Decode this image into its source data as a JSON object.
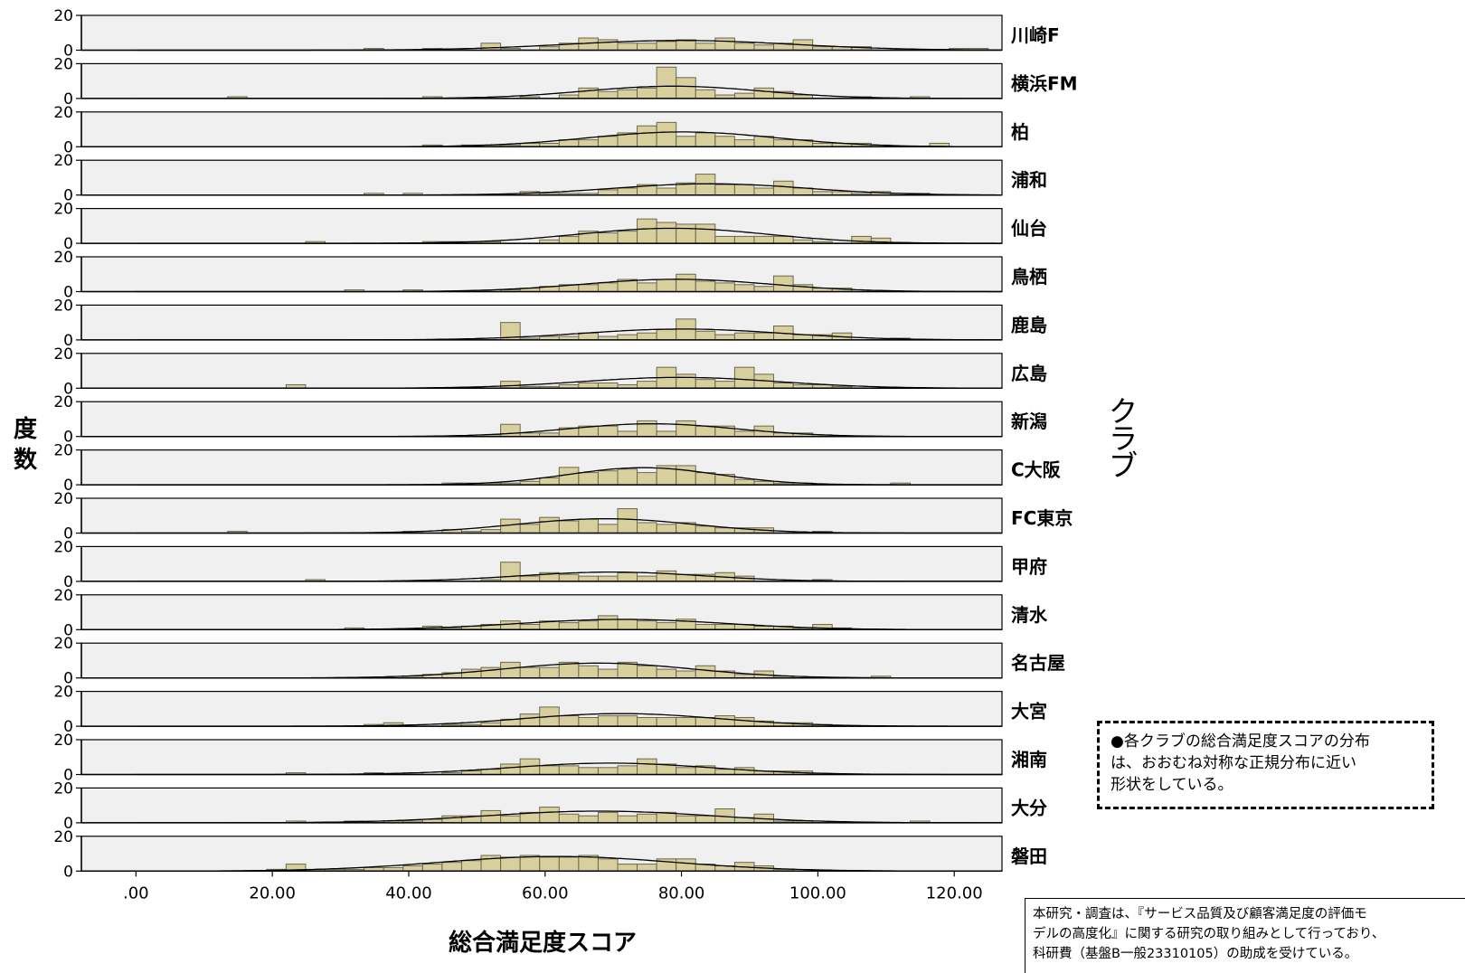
{
  "chart_data": {
    "type": "bar",
    "subtype": "faceted histograms with fitted normal curves",
    "xlabel": "総合満足度スコア",
    "ylabel": "度数",
    "panel_label_title": "クラブ",
    "xlim": [
      -8,
      127
    ],
    "ylim": [
      0,
      20
    ],
    "x_ticks": [
      0,
      20,
      40,
      60,
      80,
      100,
      120
    ],
    "x_tick_labels": [
      ".00",
      "20.00",
      "40.00",
      "60.00",
      "80.00",
      "100.00",
      "120.00"
    ],
    "y_ticks": [
      0,
      20
    ],
    "y_tick_labels": [
      "0",
      "20"
    ],
    "bin_start": 2.0,
    "bin_width": 2.86,
    "colors": {
      "bar_fill": "#d8d09c",
      "bar_stroke": "#6b6650",
      "panel_bg": "#f0f0f0",
      "curve": "#000000"
    },
    "series": [
      {
        "name": "川崎F",
        "counts": [
          0,
          0,
          0,
          0,
          0,
          0,
          0,
          0,
          0,
          0,
          0,
          1,
          0,
          0,
          1,
          0,
          0,
          4,
          1,
          0,
          2,
          4,
          7,
          6,
          4,
          4,
          5,
          6,
          4,
          7,
          4,
          3,
          4,
          6,
          2,
          2,
          2,
          0,
          0,
          0,
          0,
          1,
          1,
          0,
          0,
          0
        ]
      },
      {
        "name": "横浜FM",
        "counts": [
          0,
          0,
          0,
          0,
          1,
          0,
          0,
          0,
          0,
          0,
          0,
          0,
          0,
          0,
          1,
          0,
          0,
          0,
          0,
          1,
          0,
          2,
          6,
          4,
          5,
          6,
          18,
          12,
          5,
          2,
          3,
          6,
          4,
          2,
          0,
          0,
          1,
          0,
          0,
          1,
          0,
          0,
          0,
          0,
          0,
          0
        ]
      },
      {
        "name": "柏",
        "counts": [
          0,
          0,
          0,
          0,
          0,
          0,
          0,
          0,
          0,
          0,
          0,
          0,
          0,
          0,
          1,
          0,
          1,
          1,
          1,
          2,
          2,
          4,
          4,
          6,
          8,
          12,
          14,
          6,
          8,
          6,
          4,
          6,
          4,
          4,
          2,
          2,
          2,
          1,
          0,
          0,
          2,
          0,
          0,
          0,
          0,
          0
        ]
      },
      {
        "name": "浦和",
        "counts": [
          0,
          0,
          0,
          0,
          0,
          0,
          0,
          0,
          0,
          0,
          0,
          1,
          0,
          1,
          0,
          0,
          0,
          0,
          0,
          2,
          1,
          1,
          1,
          3,
          4,
          6,
          4,
          7,
          12,
          6,
          6,
          4,
          8,
          4,
          2,
          2,
          1,
          2,
          1,
          1,
          0,
          0,
          0,
          0,
          0,
          0
        ]
      },
      {
        "name": "仙台",
        "counts": [
          0,
          0,
          0,
          0,
          0,
          0,
          0,
          0,
          1,
          0,
          0,
          0,
          0,
          0,
          1,
          1,
          1,
          1,
          0,
          0,
          2,
          4,
          7,
          6,
          7,
          14,
          12,
          11,
          11,
          4,
          4,
          4,
          4,
          2,
          1,
          0,
          4,
          3,
          0,
          0,
          0,
          0,
          0,
          0,
          0,
          0
        ]
      },
      {
        "name": "鳥栖",
        "counts": [
          0,
          0,
          0,
          0,
          0,
          0,
          0,
          0,
          0,
          0,
          1,
          0,
          0,
          1,
          0,
          0,
          0,
          0,
          1,
          2,
          3,
          4,
          4,
          5,
          7,
          5,
          7,
          10,
          6,
          5,
          4,
          3,
          9,
          4,
          2,
          2,
          0,
          0,
          0,
          0,
          0,
          0,
          0,
          0,
          0,
          0
        ]
      },
      {
        "name": "鹿島",
        "counts": [
          0,
          0,
          0,
          0,
          0,
          0,
          0,
          0,
          0,
          0,
          0,
          0,
          0,
          0,
          0,
          0,
          0,
          0,
          10,
          1,
          2,
          2,
          4,
          2,
          3,
          4,
          6,
          12,
          5,
          3,
          4,
          4,
          8,
          3,
          3,
          4,
          0,
          0,
          1,
          0,
          0,
          0,
          0,
          0,
          0,
          0
        ]
      },
      {
        "name": "広島",
        "counts": [
          0,
          0,
          0,
          0,
          0,
          0,
          0,
          2,
          0,
          0,
          0,
          0,
          0,
          0,
          0,
          0,
          0,
          0,
          4,
          1,
          1,
          2,
          3,
          3,
          2,
          4,
          12,
          8,
          5,
          4,
          12,
          8,
          3,
          2,
          2,
          1,
          0,
          0,
          0,
          0,
          0,
          0,
          0,
          0,
          0,
          0
        ]
      },
      {
        "name": "新潟",
        "counts": [
          0,
          0,
          0,
          0,
          0,
          0,
          0,
          0,
          0,
          0,
          0,
          0,
          0,
          0,
          0,
          0,
          0,
          1,
          7,
          2,
          2,
          5,
          6,
          6,
          3,
          9,
          3,
          9,
          6,
          6,
          3,
          6,
          2,
          2,
          1,
          0,
          0,
          0,
          0,
          0,
          0,
          0,
          0,
          0,
          0,
          0
        ]
      },
      {
        "name": "C大阪",
        "counts": [
          0,
          0,
          0,
          0,
          0,
          0,
          0,
          0,
          0,
          0,
          0,
          0,
          0,
          0,
          0,
          1,
          1,
          1,
          1,
          2,
          4,
          10,
          7,
          8,
          9,
          7,
          11,
          11,
          7,
          6,
          3,
          2,
          1,
          1,
          0,
          0,
          0,
          0,
          1,
          0,
          0,
          0,
          0,
          0,
          0,
          0
        ]
      },
      {
        "name": "FC東京",
        "counts": [
          0,
          0,
          0,
          0,
          1,
          0,
          0,
          0,
          0,
          0,
          0,
          0,
          0,
          1,
          0,
          2,
          1,
          2,
          8,
          5,
          9,
          7,
          8,
          5,
          14,
          6,
          5,
          6,
          4,
          3,
          3,
          3,
          0,
          0,
          1,
          0,
          0,
          0,
          0,
          0,
          0,
          0,
          0,
          0,
          0,
          0
        ]
      },
      {
        "name": "甲府",
        "counts": [
          0,
          0,
          0,
          0,
          0,
          0,
          0,
          0,
          1,
          0,
          0,
          0,
          0,
          0,
          0,
          0,
          0,
          1,
          11,
          3,
          5,
          4,
          3,
          3,
          5,
          3,
          6,
          4,
          4,
          5,
          3,
          0,
          0,
          0,
          1,
          0,
          0,
          0,
          0,
          0,
          0,
          0,
          0,
          0,
          0,
          0
        ]
      },
      {
        "name": "清水",
        "counts": [
          0,
          0,
          0,
          0,
          0,
          0,
          0,
          0,
          0,
          0,
          1,
          0,
          0,
          0,
          2,
          1,
          2,
          3,
          5,
          3,
          5,
          4,
          5,
          8,
          6,
          5,
          4,
          6,
          3,
          3,
          3,
          2,
          2,
          1,
          3,
          1,
          0,
          0,
          0,
          0,
          0,
          0,
          0,
          0,
          0,
          0
        ]
      },
      {
        "name": "名古屋",
        "counts": [
          0,
          0,
          0,
          0,
          0,
          0,
          0,
          0,
          0,
          0,
          0,
          0,
          0,
          1,
          2,
          3,
          5,
          6,
          9,
          6,
          6,
          9,
          7,
          5,
          9,
          7,
          5,
          4,
          7,
          4,
          2,
          4,
          1,
          0,
          0,
          0,
          0,
          1,
          0,
          0,
          0,
          0,
          0,
          0,
          0,
          0
        ]
      },
      {
        "name": "大宮",
        "counts": [
          0,
          0,
          0,
          0,
          0,
          0,
          0,
          0,
          0,
          0,
          0,
          1,
          2,
          0,
          0,
          1,
          1,
          2,
          4,
          7,
          11,
          6,
          5,
          6,
          6,
          5,
          5,
          5,
          5,
          6,
          5,
          3,
          2,
          2,
          1,
          0,
          0,
          0,
          0,
          0,
          0,
          0,
          0,
          0,
          0,
          0
        ]
      },
      {
        "name": "湘南",
        "counts": [
          0,
          0,
          0,
          0,
          0,
          0,
          0,
          1,
          0,
          0,
          0,
          1,
          0,
          1,
          0,
          1,
          2,
          3,
          6,
          9,
          5,
          5,
          4,
          4,
          5,
          9,
          6,
          4,
          5,
          3,
          4,
          2,
          2,
          2,
          0,
          0,
          0,
          0,
          0,
          0,
          0,
          0,
          0,
          0,
          0,
          0
        ]
      },
      {
        "name": "大分",
        "counts": [
          0,
          0,
          0,
          0,
          0,
          0,
          0,
          1,
          0,
          0,
          1,
          0,
          1,
          1,
          2,
          4,
          4,
          7,
          4,
          6,
          9,
          5,
          4,
          6,
          4,
          5,
          6,
          4,
          4,
          8,
          3,
          5,
          1,
          1,
          0,
          0,
          0,
          0,
          0,
          1,
          0,
          0,
          0,
          0,
          0,
          0
        ]
      },
      {
        "name": "磐田",
        "counts": [
          0,
          0,
          0,
          0,
          0,
          0,
          1,
          4,
          1,
          1,
          1,
          2,
          2,
          3,
          4,
          5,
          6,
          9,
          8,
          9,
          8,
          8,
          9,
          7,
          4,
          4,
          7,
          7,
          4,
          3,
          5,
          3,
          1,
          0,
          0,
          0,
          0,
          0,
          0,
          0,
          0,
          0,
          0,
          0,
          0,
          0
        ]
      }
    ]
  },
  "note_lines": [
    "●各クラブの総合満足度スコアの分布",
    "は、おおむね対称な正規分布に近い",
    "形状をしている。"
  ],
  "credit_lines": [
    "本研究・調査は、『サービス品質及び顧客満足度の評価モ",
    "デルの高度化』に関する研究の取り組みとして行っており、",
    "科研費（基盤B一般23310105）の助成を受けている。"
  ]
}
